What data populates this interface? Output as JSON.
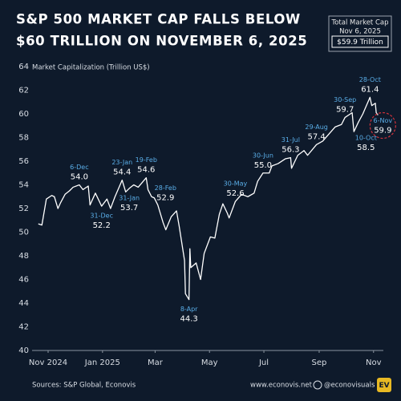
{
  "chart_data": {
    "type": "line",
    "title": [
      "S&P 500 MARKET CAP FALLS BELOW",
      "$60 TRILLION ON NOVEMBER 6, 2025"
    ],
    "summary_box": [
      "Total Market Cap",
      "Nov 6, 2025",
      "$59.9 Trillion"
    ],
    "y_label": "Market Capitalization (Trillion US$)",
    "color": "#ffffff",
    "x": [
      "2024-10-21",
      "2024-10-25",
      "2024-10-30",
      "2024-11-05",
      "2024-11-08",
      "2024-11-12",
      "2024-11-15",
      "2024-11-20",
      "2024-11-25",
      "2024-11-29",
      "2024-12-06",
      "2024-12-10",
      "2024-12-16",
      "2024-12-18",
      "2024-12-24",
      "2024-12-31",
      "2025-01-06",
      "2025-01-10",
      "2025-01-15",
      "2025-01-23",
      "2025-01-27",
      "2025-01-31",
      "2025-02-05",
      "2025-02-10",
      "2025-02-19",
      "2025-02-21",
      "2025-02-25",
      "2025-02-28",
      "2025-03-04",
      "2025-03-10",
      "2025-03-13",
      "2025-03-19",
      "2025-03-25",
      "2025-03-28",
      "2025-04-03",
      "2025-04-04",
      "2025-04-08",
      "2025-04-09",
      "2025-04-10",
      "2025-04-16",
      "2025-04-21",
      "2025-04-25",
      "2025-05-02",
      "2025-05-07",
      "2025-05-12",
      "2025-05-16",
      "2025-05-21",
      "2025-05-23",
      "2025-05-30",
      "2025-06-06",
      "2025-06-13",
      "2025-06-20",
      "2025-06-24",
      "2025-06-30",
      "2025-07-07",
      "2025-07-10",
      "2025-07-17",
      "2025-07-25",
      "2025-07-31",
      "2025-08-01",
      "2025-08-08",
      "2025-08-15",
      "2025-08-19",
      "2025-08-29",
      "2025-09-05",
      "2025-09-12",
      "2025-09-19",
      "2025-09-26",
      "2025-09-30",
      "2025-10-08",
      "2025-10-10",
      "2025-10-15",
      "2025-10-20",
      "2025-10-24",
      "2025-10-28",
      "2025-10-30",
      "2025-11-03",
      "2025-11-04",
      "2025-11-06"
    ],
    "values": [
      50.7,
      50.6,
      52.8,
      53.1,
      53.0,
      52.0,
      52.5,
      53.2,
      53.5,
      53.8,
      54.0,
      53.6,
      53.9,
      52.3,
      53.3,
      52.2,
      52.8,
      52.0,
      53.0,
      54.4,
      53.4,
      53.7,
      54.0,
      53.8,
      54.6,
      53.6,
      53.0,
      52.9,
      52.3,
      50.8,
      50.2,
      51.3,
      51.8,
      50.5,
      47.6,
      44.8,
      44.3,
      48.6,
      47.0,
      47.4,
      46.0,
      48.2,
      49.6,
      49.5,
      51.5,
      52.4,
      51.6,
      51.2,
      52.6,
      53.2,
      53.0,
      53.3,
      54.3,
      55.0,
      55.0,
      55.6,
      55.8,
      56.2,
      56.3,
      55.4,
      56.5,
      56.9,
      56.5,
      57.4,
      57.7,
      58.3,
      58.9,
      59.1,
      59.7,
      60.1,
      58.5,
      59.3,
      60.0,
      60.7,
      61.4,
      60.7,
      60.9,
      60.1,
      59.9
    ],
    "annotations": [
      {
        "x": "2024-12-06",
        "date_label": "6-Dec",
        "value": 54.0,
        "value_label": "54.0"
      },
      {
        "x": "2024-12-31",
        "date_label": "31-Dec",
        "value": 52.2,
        "value_label": "52.2"
      },
      {
        "x": "2025-01-23",
        "date_label": "23-Jan",
        "value": 54.4,
        "value_label": "54.4"
      },
      {
        "x": "2025-01-31",
        "date_label": "31-Jan",
        "value": 53.7,
        "value_label": "53.7"
      },
      {
        "x": "2025-02-19",
        "date_label": "19-Feb",
        "value": 54.6,
        "value_label": "54.6"
      },
      {
        "x": "2025-02-28",
        "date_label": "28-Feb",
        "value": 52.9,
        "value_label": "52.9"
      },
      {
        "x": "2025-04-08",
        "date_label": "8-Apr",
        "value": 44.3,
        "value_label": "44.3"
      },
      {
        "x": "2025-05-30",
        "date_label": "30-May",
        "value": 52.6,
        "value_label": "52.6"
      },
      {
        "x": "2025-06-30",
        "date_label": "30-Jun",
        "value": 55.0,
        "value_label": "55.0"
      },
      {
        "x": "2025-07-31",
        "date_label": "31-Jul",
        "value": 56.3,
        "value_label": "56.3"
      },
      {
        "x": "2025-08-29",
        "date_label": "29-Aug",
        "value": 57.4,
        "value_label": "57.4"
      },
      {
        "x": "2025-09-30",
        "date_label": "30-Sep",
        "value": 59.7,
        "value_label": "59.7"
      },
      {
        "x": "2025-10-10",
        "date_label": "10-Oct",
        "value": 58.5,
        "value_label": "58.5"
      },
      {
        "x": "2025-10-28",
        "date_label": "28-Oct",
        "value": 61.4,
        "value_label": "61.4"
      },
      {
        "x": "2025-11-06",
        "date_label": "6-Nov",
        "value": 59.9,
        "value_label": "59.9"
      }
    ],
    "xlim": [
      "2024-10-14",
      "2025-11-12"
    ],
    "xticks": [
      {
        "value": "2024-11-01",
        "label": "Nov 2024"
      },
      {
        "value": "2025-01-01",
        "label": "Jan 2025"
      },
      {
        "value": "2025-03-01",
        "label": "Mar"
      },
      {
        "value": "2025-05-01",
        "label": "May"
      },
      {
        "value": "2025-07-01",
        "label": "Jul"
      },
      {
        "value": "2025-09-01",
        "label": "Sep"
      },
      {
        "value": "2025-11-01",
        "label": "Nov"
      }
    ],
    "ylim": [
      40,
      64
    ],
    "yticks": [
      40,
      42,
      44,
      46,
      48,
      50,
      52,
      54,
      56,
      58,
      60,
      62,
      64
    ],
    "grid": false,
    "footer": {
      "source": "Sources: S&P Global, Econovis",
      "site": "www.econovis.net",
      "handle": "@econovisuals",
      "logo": "EV"
    }
  }
}
